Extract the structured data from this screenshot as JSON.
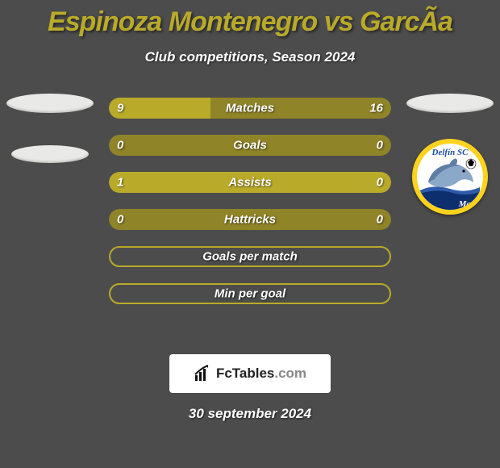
{
  "title": "Espinoza Montenegro vs GarcÃa",
  "subtitle": "Club competitions, Season 2024",
  "colors": {
    "background": "#4c4c4c",
    "accent": "#b9aa2a",
    "accent_dim": "#8f8427",
    "text": "#ffffff",
    "disc_ring": "#ffd21d"
  },
  "bars": [
    {
      "label": "Matches",
      "left": "9",
      "right": "16",
      "left_ratio": 0.36,
      "mode": "split"
    },
    {
      "label": "Goals",
      "left": "0",
      "right": "0",
      "left_ratio": 0.0,
      "mode": "empty-dim"
    },
    {
      "label": "Assists",
      "left": "1",
      "right": "0",
      "left_ratio": 1.0,
      "mode": "full-left"
    },
    {
      "label": "Hattricks",
      "left": "0",
      "right": "0",
      "left_ratio": 0.0,
      "mode": "empty-dim"
    },
    {
      "label": "Goals per match",
      "left": "",
      "right": "",
      "left_ratio": 0.0,
      "mode": "outline"
    },
    {
      "label": "Min per goal",
      "left": "",
      "right": "",
      "left_ratio": 0.0,
      "mode": "outline"
    }
  ],
  "club_badge": {
    "top_text": "Delfín SC",
    "bottom_text": "Mant",
    "top_text_color": "#1d4ea3"
  },
  "fctables": {
    "prefix": "Fc",
    "main": "Tables",
    "suffix": ".com"
  },
  "date": "30 september 2024"
}
